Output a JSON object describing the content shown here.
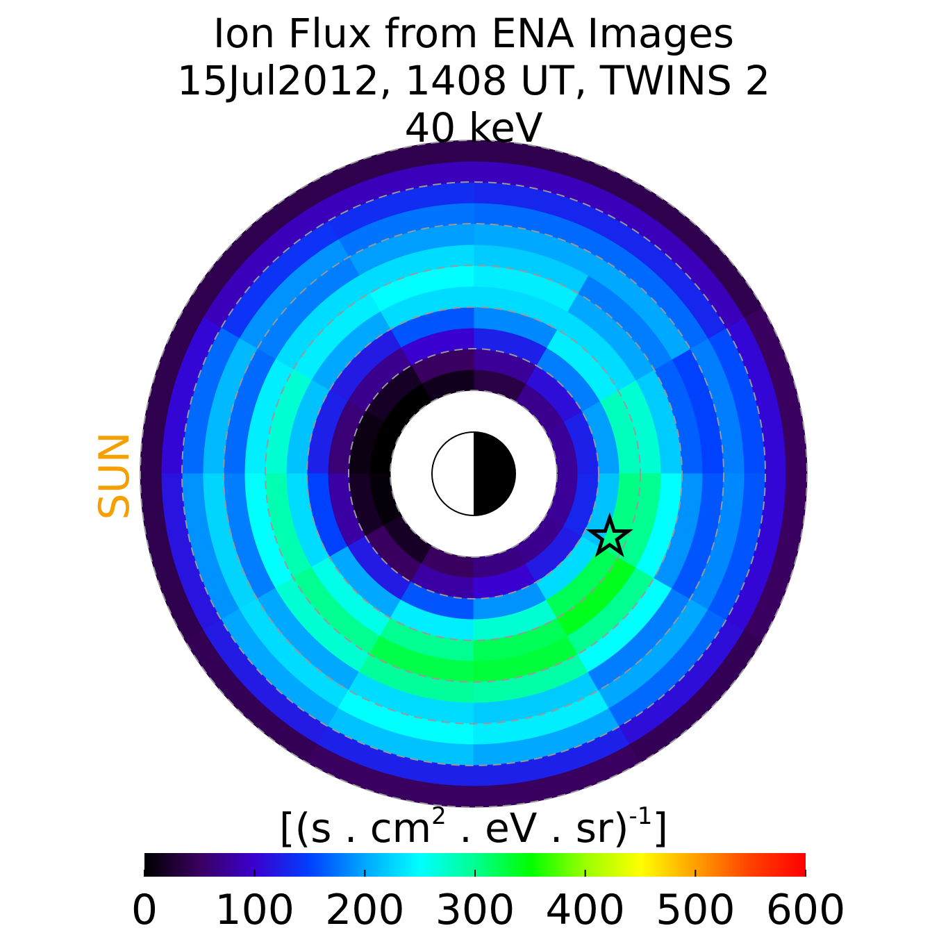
{
  "chart_data": {
    "type": "polar_heatmap",
    "title": [
      "Ion Flux from  ENA Images",
      "15Jul2012, 1408 UT,  TWINS 2",
      "40 keV"
    ],
    "side_label": "SUN",
    "side_label_color": "#f5a000",
    "r_edges": [
      2,
      2.5,
      3,
      3.5,
      4,
      4.5,
      5,
      5.5,
      6,
      6.5,
      7,
      7.5,
      8
    ],
    "theta_edges": [
      0,
      30,
      60,
      90,
      120,
      150,
      180,
      210,
      240,
      270,
      300,
      330,
      360
    ],
    "values": [
      [
        75,
        125,
        195,
        280,
        270,
        220,
        165,
        150,
        180,
        155,
        105,
        50
      ],
      [
        70,
        110,
        180,
        240,
        230,
        200,
        180,
        200,
        170,
        130,
        90,
        40
      ],
      [
        35,
        75,
        125,
        185,
        230,
        240,
        220,
        200,
        170,
        130,
        90,
        40
      ],
      [
        15,
        50,
        100,
        160,
        230,
        250,
        230,
        195,
        175,
        135,
        90,
        40
      ],
      [
        0,
        20,
        70,
        120,
        200,
        240,
        230,
        180,
        190,
        140,
        90,
        40
      ],
      [
        0,
        10,
        60,
        125,
        215,
        270,
        240,
        170,
        210,
        170,
        105,
        40
      ],
      [
        5,
        20,
        80,
        150,
        230,
        285,
        250,
        180,
        225,
        190,
        115,
        40
      ],
      [
        20,
        50,
        120,
        200,
        260,
        300,
        270,
        200,
        230,
        200,
        120,
        45
      ],
      [
        50,
        80,
        160,
        240,
        300,
        325,
        295,
        230,
        250,
        215,
        125,
        50
      ],
      [
        65,
        100,
        190,
        270,
        320,
        330,
        290,
        220,
        240,
        200,
        125,
        50
      ],
      [
        70,
        120,
        230,
        320,
        340,
        300,
        250,
        180,
        200,
        170,
        110,
        45
      ],
      [
        75,
        130,
        215,
        305,
        300,
        250,
        190,
        160,
        185,
        160,
        105,
        50
      ]
    ],
    "rlim": [
      0,
      8
    ],
    "rticks": [
      2,
      3,
      4,
      5,
      6,
      7,
      8
    ],
    "star": {
      "r": 3.6,
      "theta": 335
    },
    "colorbar_label": [
      {
        "text": "[(s . cm"
      },
      {
        "text": "2",
        "sup": true
      },
      {
        "text": "  . eV . sr)"
      },
      {
        "text": "-1",
        "sup": true
      },
      {
        "text": "]"
      }
    ],
    "clim": [
      0,
      600
    ],
    "cticks": [
      0,
      100,
      200,
      300,
      400,
      500,
      600
    ],
    "colormap": [
      "#000000",
      "#3a0060",
      "#3a00d0",
      "#0040ff",
      "#00a8ff",
      "#00ffff",
      "#00ff90",
      "#00ff00",
      "#9aff00",
      "#ffff00",
      "#ffa000",
      "#ff4000",
      "#ff0000"
    ]
  }
}
